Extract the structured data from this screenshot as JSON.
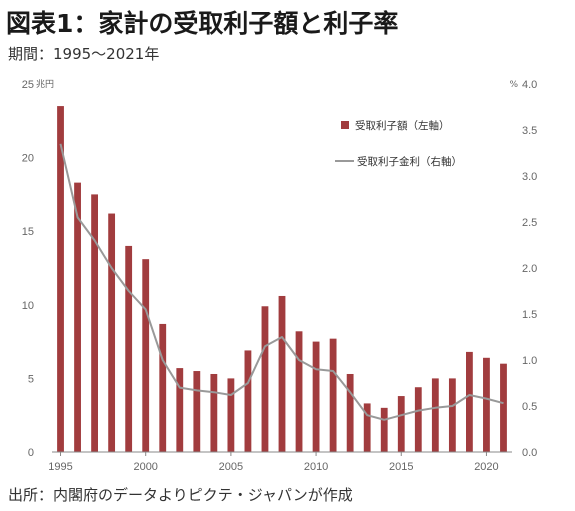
{
  "header": {
    "title": "図表1：家計の受取利子額と利子率",
    "period": "期間：1995～2021年"
  },
  "footer": {
    "source": "出所：内閣府のデータよりピクテ・ジャパンが作成"
  },
  "colors": {
    "bar": "#a13c3e",
    "line": "#999999",
    "axis": "#888888"
  },
  "chart_data": {
    "type": "bar",
    "x": [
      1995,
      1996,
      1997,
      1998,
      1999,
      2000,
      2001,
      2002,
      2003,
      2004,
      2005,
      2006,
      2007,
      2008,
      2009,
      2010,
      2011,
      2012,
      2013,
      2014,
      2015,
      2016,
      2017,
      2018,
      2019,
      2020,
      2021
    ],
    "x_tick_labels": [
      "1995",
      "2000",
      "2005",
      "2010",
      "2015",
      "2020"
    ],
    "series": [
      {
        "name": "受取利子額（左軸）",
        "type": "bar",
        "axis": "left",
        "values": [
          23.5,
          18.3,
          17.5,
          16.2,
          14.0,
          13.1,
          8.7,
          5.7,
          5.5,
          5.3,
          5.0,
          6.9,
          9.9,
          10.6,
          8.2,
          7.5,
          7.7,
          5.3,
          3.3,
          3.0,
          3.8,
          4.4,
          5.0,
          5.0,
          6.8,
          6.4,
          6.0
        ]
      },
      {
        "name": "受取利子金利（右軸）",
        "type": "line",
        "axis": "right",
        "values": [
          3.35,
          2.55,
          2.3,
          2.0,
          1.75,
          1.55,
          1.0,
          0.7,
          0.67,
          0.65,
          0.62,
          0.75,
          1.15,
          1.25,
          1.0,
          0.9,
          0.88,
          0.65,
          0.4,
          0.35,
          0.4,
          0.45,
          0.48,
          0.5,
          0.62,
          0.58,
          0.53
        ]
      }
    ],
    "y_left": {
      "unit": "兆円",
      "ylim": [
        0,
        25
      ],
      "ticks": [
        "0",
        "5",
        "10",
        "15",
        "20",
        "25"
      ]
    },
    "y_right": {
      "unit": "%",
      "ylim": [
        0,
        4.0
      ],
      "ticks": [
        "0.0",
        "0.5",
        "1.0",
        "1.5",
        "2.0",
        "2.5",
        "3.0",
        "3.5",
        "4.0"
      ]
    },
    "legend_position": "top-right",
    "grid": false
  }
}
